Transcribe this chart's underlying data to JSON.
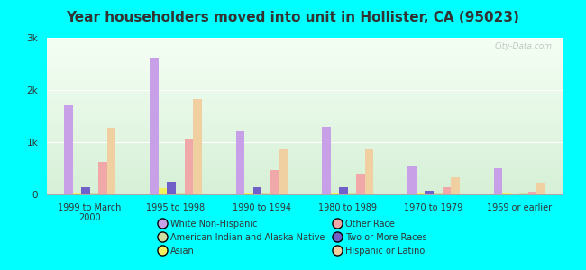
{
  "title": "Year householders moved into unit in Hollister, CA (95023)",
  "categories": [
    "1999 to March\n2000",
    "1995 to 1998",
    "1990 to 1994",
    "1980 to 1989",
    "1970 to 1979",
    "1969 or earlier"
  ],
  "series": {
    "White Non-Hispanic": [
      1700,
      2600,
      1200,
      1300,
      530,
      500
    ],
    "Asian": [
      30,
      120,
      20,
      40,
      20,
      20
    ],
    "Two or More Races": [
      130,
      250,
      130,
      130,
      70,
      0
    ],
    "American Indian and Alaska Native": [
      10,
      10,
      10,
      10,
      10,
      10
    ],
    "Other Race": [
      620,
      1050,
      470,
      390,
      140,
      60
    ],
    "Hispanic or Latino": [
      1270,
      1820,
      870,
      870,
      330,
      230
    ]
  },
  "colors": {
    "White Non-Hispanic": "#c8a0e8",
    "Asian": "#f0f060",
    "Two or More Races": "#7060c8",
    "American Indian and Alaska Native": "#d0dea0",
    "Other Race": "#f0a8a8",
    "Hispanic or Latino": "#f0d0a0"
  },
  "ylim": [
    0,
    3000
  ],
  "yticks": [
    0,
    1000,
    2000,
    3000
  ],
  "ytick_labels": [
    "0",
    "1k",
    "2k",
    "3k"
  ],
  "background_color": "#00ffff",
  "title_color": "#333333",
  "title_fontsize": 11,
  "watermark": "City-Data.com"
}
